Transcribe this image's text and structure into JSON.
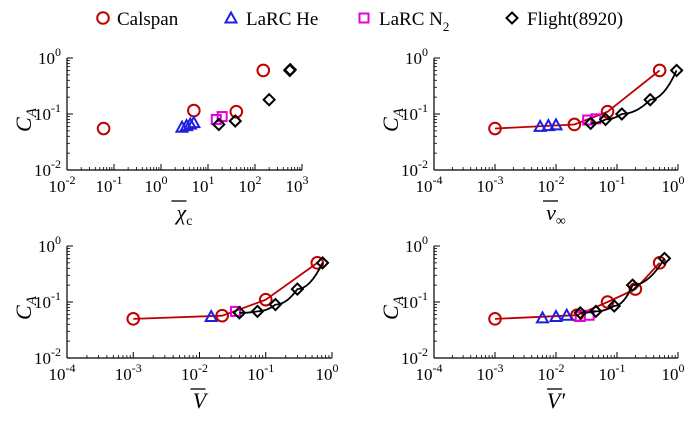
{
  "legend": [
    {
      "key": "calspan",
      "label": "Calspan",
      "marker": "circle",
      "color": "#c00000",
      "sub": ""
    },
    {
      "key": "lhe",
      "label": "LaRC He",
      "marker": "triangle",
      "color": "#1f1fe0",
      "sub": ""
    },
    {
      "key": "ln2",
      "label": "LaRC N",
      "marker": "square",
      "color": "#e000e0",
      "sub": "2"
    },
    {
      "key": "flight",
      "label": "Flight(8920)",
      "marker": "diamond",
      "color": "#000000",
      "sub": ""
    }
  ],
  "chart_data": [
    {
      "type": "scatter",
      "title": "",
      "xlabel": "χ̄c",
      "ylabel": "CA",
      "xscale": "log",
      "yscale": "log",
      "xlim": [
        0.01,
        1000
      ],
      "ylim": [
        0.01,
        1
      ],
      "xticks": [
        {
          "exp": "-2"
        },
        {
          "exp": "-1"
        },
        {
          "exp": "0"
        },
        {
          "exp": "1"
        },
        {
          "exp": "2"
        },
        {
          "exp": "3"
        }
      ],
      "yticks": [
        {
          "exp": "-2"
        },
        {
          "exp": "-1"
        },
        {
          "exp": "0"
        }
      ],
      "series": [
        {
          "name": "Calspan",
          "lines": false,
          "x": [
            0.06,
            5.0,
            40,
            150
          ],
          "y": [
            0.055,
            0.115,
            0.11,
            0.6
          ]
        },
        {
          "name": "LaRC He",
          "lines": false,
          "x": [
            2.8,
            3.5,
            4.2,
            5.0
          ],
          "y": [
            0.058,
            0.062,
            0.066,
            0.07
          ]
        },
        {
          "name": "LaRC N2",
          "lines": false,
          "x": [
            15,
            20
          ],
          "y": [
            0.08,
            0.09
          ]
        },
        {
          "name": "Flight(8920)",
          "lines": false,
          "x": [
            17,
            38,
            200,
            550,
            560
          ],
          "y": [
            0.065,
            0.075,
            0.18,
            0.6,
            0.62
          ]
        }
      ]
    },
    {
      "type": "line",
      "title": "",
      "xlabel": "v̄∞",
      "ylabel": "CA",
      "xscale": "log",
      "yscale": "log",
      "xlim": [
        0.0001,
        1
      ],
      "ylim": [
        0.01,
        1
      ],
      "xticks": [
        {
          "exp": "-4"
        },
        {
          "exp": "-3"
        },
        {
          "exp": "-2"
        },
        {
          "exp": "-1"
        },
        {
          "exp": "0"
        }
      ],
      "yticks": [
        {
          "exp": "-2"
        },
        {
          "exp": "-1"
        },
        {
          "exp": "0"
        }
      ],
      "series": [
        {
          "name": "Calspan",
          "lines": true,
          "x": [
            0.001,
            0.02,
            0.07,
            0.5
          ],
          "y": [
            0.055,
            0.065,
            0.11,
            0.6
          ]
        },
        {
          "name": "LaRC He",
          "lines": false,
          "x": [
            0.0055,
            0.0075,
            0.01
          ],
          "y": [
            0.06,
            0.062,
            0.064
          ]
        },
        {
          "name": "LaRC N2",
          "lines": false,
          "x": [
            0.033,
            0.045
          ],
          "y": [
            0.078,
            0.082
          ]
        },
        {
          "name": "Flight(8920)",
          "lines": true,
          "x": [
            0.037,
            0.065,
            0.12,
            0.35,
            0.95
          ],
          "y": [
            0.068,
            0.08,
            0.1,
            0.18,
            0.6
          ]
        }
      ]
    },
    {
      "type": "line",
      "title": "",
      "xlabel": "V̄",
      "ylabel": "CA",
      "xscale": "log",
      "yscale": "log",
      "xlim": [
        0.0001,
        1
      ],
      "ylim": [
        0.01,
        1
      ],
      "xticks": [
        {
          "exp": "-4"
        },
        {
          "exp": "-3"
        },
        {
          "exp": "-2"
        },
        {
          "exp": "-1"
        },
        {
          "exp": "0"
        }
      ],
      "yticks": [
        {
          "exp": "-2"
        },
        {
          "exp": "-1"
        },
        {
          "exp": "0"
        }
      ],
      "series": [
        {
          "name": "Calspan",
          "lines": true,
          "x": [
            0.001,
            0.022,
            0.1,
            0.6
          ],
          "y": [
            0.05,
            0.057,
            0.11,
            0.5
          ]
        },
        {
          "name": "LaRC He",
          "lines": false,
          "x": [
            0.015
          ],
          "y": [
            0.055
          ]
        },
        {
          "name": "LaRC N2",
          "lines": false,
          "x": [
            0.035
          ],
          "y": [
            0.068
          ]
        },
        {
          "name": "Flight(8920)",
          "lines": true,
          "x": [
            0.04,
            0.075,
            0.14,
            0.3,
            0.72
          ],
          "y": [
            0.064,
            0.068,
            0.09,
            0.17,
            0.5
          ]
        }
      ]
    },
    {
      "type": "line",
      "title": "",
      "xlabel": "V̄′",
      "ylabel": "CA",
      "xscale": "log",
      "yscale": "log",
      "xlim": [
        0.0001,
        1
      ],
      "ylim": [
        0.01,
        1
      ],
      "xticks": [
        {
          "exp": "-4"
        },
        {
          "exp": "-3"
        },
        {
          "exp": "-2"
        },
        {
          "exp": "-1"
        },
        {
          "exp": "0"
        }
      ],
      "yticks": [
        {
          "exp": "-2"
        },
        {
          "exp": "-1"
        },
        {
          "exp": "0"
        }
      ],
      "series": [
        {
          "name": "Calspan",
          "lines": true,
          "x": [
            0.001,
            0.022,
            0.07,
            0.2,
            0.5
          ],
          "y": [
            0.05,
            0.058,
            0.1,
            0.17,
            0.5
          ]
        },
        {
          "name": "LaRC He",
          "lines": false,
          "x": [
            0.006,
            0.01,
            0.015
          ],
          "y": [
            0.052,
            0.055,
            0.058
          ]
        },
        {
          "name": "LaRC N2",
          "lines": false,
          "x": [
            0.025,
            0.035
          ],
          "y": [
            0.055,
            0.058
          ]
        },
        {
          "name": "Flight(8920)",
          "lines": true,
          "x": [
            0.025,
            0.045,
            0.09,
            0.18,
            0.6
          ],
          "y": [
            0.064,
            0.068,
            0.085,
            0.2,
            0.6
          ]
        }
      ]
    }
  ]
}
